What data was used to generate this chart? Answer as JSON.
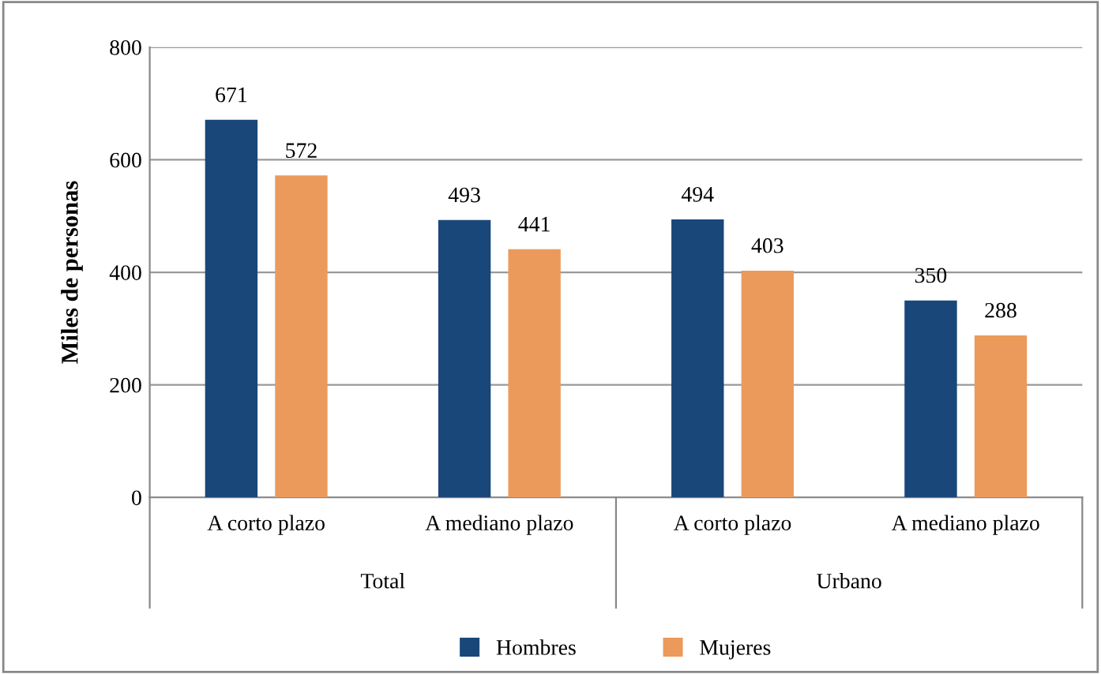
{
  "chart_data": {
    "type": "bar",
    "ylabel": "Miles de personas",
    "categories": [
      "A corto plazo",
      "A mediano plazo",
      "A corto plazo",
      "A mediano plazo"
    ],
    "series": [
      {
        "name": "Hombres",
        "color": "#1a477a",
        "values": [
          671,
          493,
          494,
          350
        ]
      },
      {
        "name": "Mujeres",
        "color": "#ec9a5c",
        "values": [
          572,
          441,
          403,
          288
        ]
      }
    ],
    "annotations": [
      "Total",
      "Urbano"
    ],
    "ylim": [
      0,
      800
    ],
    "yticks": [
      0,
      200,
      400,
      600,
      800
    ],
    "grid": "y",
    "data_labels": true,
    "legend": "bottom"
  }
}
